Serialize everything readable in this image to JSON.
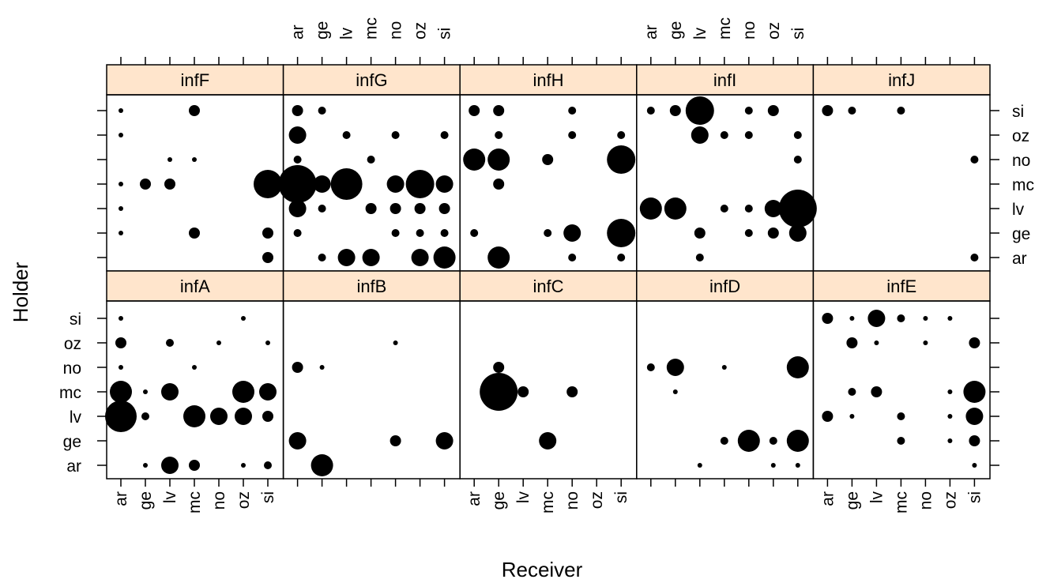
{
  "chart_data": {
    "type": "scatter",
    "x_categories": [
      "ar",
      "ge",
      "lv",
      "mc",
      "no",
      "oz",
      "si"
    ],
    "y_categories": [
      "ar",
      "ge",
      "lv",
      "mc",
      "no",
      "oz",
      "si"
    ],
    "xlabel": "Receiver",
    "ylabel": "Holder",
    "size_levels": [
      1,
      2,
      3,
      4,
      5,
      6
    ],
    "panels": [
      {
        "name": "infF",
        "points": [
          {
            "x": "ar",
            "y": "si",
            "size": 1
          },
          {
            "x": "mc",
            "y": "si",
            "size": 3
          },
          {
            "x": "ar",
            "y": "oz",
            "size": 1
          },
          {
            "x": "lv",
            "y": "no",
            "size": 1
          },
          {
            "x": "mc",
            "y": "no",
            "size": 1
          },
          {
            "x": "ar",
            "y": "mc",
            "size": 1
          },
          {
            "x": "ge",
            "y": "mc",
            "size": 3
          },
          {
            "x": "lv",
            "y": "mc",
            "size": 3
          },
          {
            "x": "si",
            "y": "mc",
            "size": 6
          },
          {
            "x": "ar",
            "y": "lv",
            "size": 1
          },
          {
            "x": "ar",
            "y": "ge",
            "size": 1
          },
          {
            "x": "mc",
            "y": "ge",
            "size": 3
          },
          {
            "x": "si",
            "y": "ge",
            "size": 3
          },
          {
            "x": "si",
            "y": "ar",
            "size": 3
          }
        ]
      },
      {
        "name": "infG",
        "points": [
          {
            "x": "ar",
            "y": "si",
            "size": 3
          },
          {
            "x": "ge",
            "y": "si",
            "size": 2
          },
          {
            "x": "ar",
            "y": "oz",
            "size": 4
          },
          {
            "x": "lv",
            "y": "oz",
            "size": 2
          },
          {
            "x": "no",
            "y": "oz",
            "size": 2
          },
          {
            "x": "si",
            "y": "oz",
            "size": 2
          },
          {
            "x": "ar",
            "y": "no",
            "size": 2
          },
          {
            "x": "mc",
            "y": "no",
            "size": 2
          },
          {
            "x": "ar",
            "y": "mc",
            "size": 8
          },
          {
            "x": "ge",
            "y": "mc",
            "size": 4
          },
          {
            "x": "lv",
            "y": "mc",
            "size": 7
          },
          {
            "x": "no",
            "y": "mc",
            "size": 4
          },
          {
            "x": "oz",
            "y": "mc",
            "size": 6
          },
          {
            "x": "si",
            "y": "mc",
            "size": 4
          },
          {
            "x": "ar",
            "y": "lv",
            "size": 4
          },
          {
            "x": "ge",
            "y": "lv",
            "size": 2
          },
          {
            "x": "mc",
            "y": "lv",
            "size": 3
          },
          {
            "x": "no",
            "y": "lv",
            "size": 3
          },
          {
            "x": "oz",
            "y": "lv",
            "size": 3
          },
          {
            "x": "si",
            "y": "lv",
            "size": 3
          },
          {
            "x": "ar",
            "y": "ge",
            "size": 2
          },
          {
            "x": "no",
            "y": "ge",
            "size": 2
          },
          {
            "x": "oz",
            "y": "ge",
            "size": 2
          },
          {
            "x": "si",
            "y": "ge",
            "size": 2
          },
          {
            "x": "ge",
            "y": "ar",
            "size": 2
          },
          {
            "x": "lv",
            "y": "ar",
            "size": 4
          },
          {
            "x": "mc",
            "y": "ar",
            "size": 4
          },
          {
            "x": "oz",
            "y": "ar",
            "size": 4
          },
          {
            "x": "si",
            "y": "ar",
            "size": 5
          }
        ]
      },
      {
        "name": "infH",
        "points": [
          {
            "x": "ar",
            "y": "si",
            "size": 3
          },
          {
            "x": "ge",
            "y": "si",
            "size": 3
          },
          {
            "x": "no",
            "y": "si",
            "size": 2
          },
          {
            "x": "ge",
            "y": "oz",
            "size": 2
          },
          {
            "x": "no",
            "y": "oz",
            "size": 2
          },
          {
            "x": "si",
            "y": "oz",
            "size": 2
          },
          {
            "x": "ar",
            "y": "no",
            "size": 5
          },
          {
            "x": "ge",
            "y": "no",
            "size": 5
          },
          {
            "x": "mc",
            "y": "no",
            "size": 3
          },
          {
            "x": "si",
            "y": "no",
            "size": 6
          },
          {
            "x": "ge",
            "y": "mc",
            "size": 3
          },
          {
            "x": "ar",
            "y": "ge",
            "size": 2
          },
          {
            "x": "mc",
            "y": "ge",
            "size": 2
          },
          {
            "x": "no",
            "y": "ge",
            "size": 4
          },
          {
            "x": "si",
            "y": "ge",
            "size": 6
          },
          {
            "x": "ge",
            "y": "ar",
            "size": 5
          },
          {
            "x": "no",
            "y": "ar",
            "size": 2
          },
          {
            "x": "si",
            "y": "ar",
            "size": 2
          }
        ]
      },
      {
        "name": "infI",
        "points": [
          {
            "x": "ar",
            "y": "si",
            "size": 2
          },
          {
            "x": "ge",
            "y": "si",
            "size": 3
          },
          {
            "x": "lv",
            "y": "si",
            "size": 6
          },
          {
            "x": "no",
            "y": "si",
            "size": 2
          },
          {
            "x": "oz",
            "y": "si",
            "size": 3
          },
          {
            "x": "lv",
            "y": "oz",
            "size": 4
          },
          {
            "x": "mc",
            "y": "oz",
            "size": 2
          },
          {
            "x": "no",
            "y": "oz",
            "size": 2
          },
          {
            "x": "si",
            "y": "oz",
            "size": 2
          },
          {
            "x": "si",
            "y": "no",
            "size": 2
          },
          {
            "x": "ar",
            "y": "lv",
            "size": 5
          },
          {
            "x": "ge",
            "y": "lv",
            "size": 5
          },
          {
            "x": "mc",
            "y": "lv",
            "size": 2
          },
          {
            "x": "no",
            "y": "lv",
            "size": 2
          },
          {
            "x": "oz",
            "y": "lv",
            "size": 4
          },
          {
            "x": "si",
            "y": "lv",
            "size": 8
          },
          {
            "x": "lv",
            "y": "ge",
            "size": 3
          },
          {
            "x": "no",
            "y": "ge",
            "size": 2
          },
          {
            "x": "oz",
            "y": "ge",
            "size": 3
          },
          {
            "x": "si",
            "y": "ge",
            "size": 4
          },
          {
            "x": "lv",
            "y": "ar",
            "size": 2
          }
        ]
      },
      {
        "name": "infJ",
        "points": [
          {
            "x": "ar",
            "y": "si",
            "size": 3
          },
          {
            "x": "ge",
            "y": "si",
            "size": 2
          },
          {
            "x": "mc",
            "y": "si",
            "size": 2
          },
          {
            "x": "si",
            "y": "no",
            "size": 2
          },
          {
            "x": "si",
            "y": "ar",
            "size": 2
          }
        ]
      },
      {
        "name": "infA",
        "points": [
          {
            "x": "ar",
            "y": "si",
            "size": 1
          },
          {
            "x": "oz",
            "y": "si",
            "size": 1
          },
          {
            "x": "ar",
            "y": "oz",
            "size": 3
          },
          {
            "x": "lv",
            "y": "oz",
            "size": 2
          },
          {
            "x": "no",
            "y": "oz",
            "size": 1
          },
          {
            "x": "si",
            "y": "oz",
            "size": 1
          },
          {
            "x": "ar",
            "y": "no",
            "size": 1
          },
          {
            "x": "mc",
            "y": "no",
            "size": 1
          },
          {
            "x": "ar",
            "y": "mc",
            "size": 5
          },
          {
            "x": "ge",
            "y": "mc",
            "size": 1
          },
          {
            "x": "lv",
            "y": "mc",
            "size": 4
          },
          {
            "x": "oz",
            "y": "mc",
            "size": 5
          },
          {
            "x": "si",
            "y": "mc",
            "size": 4
          },
          {
            "x": "ar",
            "y": "lv",
            "size": 7
          },
          {
            "x": "ge",
            "y": "lv",
            "size": 2
          },
          {
            "x": "mc",
            "y": "lv",
            "size": 5
          },
          {
            "x": "no",
            "y": "lv",
            "size": 4
          },
          {
            "x": "oz",
            "y": "lv",
            "size": 4
          },
          {
            "x": "si",
            "y": "lv",
            "size": 3
          },
          {
            "x": "ge",
            "y": "ar",
            "size": 1
          },
          {
            "x": "lv",
            "y": "ar",
            "size": 4
          },
          {
            "x": "mc",
            "y": "ar",
            "size": 3
          },
          {
            "x": "oz",
            "y": "ar",
            "size": 1
          },
          {
            "x": "si",
            "y": "ar",
            "size": 2
          }
        ]
      },
      {
        "name": "infB",
        "points": [
          {
            "x": "no",
            "y": "oz",
            "size": 1
          },
          {
            "x": "ar",
            "y": "no",
            "size": 3
          },
          {
            "x": "ge",
            "y": "no",
            "size": 1
          },
          {
            "x": "ar",
            "y": "ge",
            "size": 4
          },
          {
            "x": "no",
            "y": "ge",
            "size": 3
          },
          {
            "x": "si",
            "y": "ge",
            "size": 4
          },
          {
            "x": "ge",
            "y": "ar",
            "size": 5
          }
        ]
      },
      {
        "name": "infC",
        "points": [
          {
            "x": "ge",
            "y": "no",
            "size": 3
          },
          {
            "x": "ge",
            "y": "mc",
            "size": 8
          },
          {
            "x": "lv",
            "y": "mc",
            "size": 3
          },
          {
            "x": "no",
            "y": "mc",
            "size": 3
          },
          {
            "x": "mc",
            "y": "ge",
            "size": 4
          }
        ]
      },
      {
        "name": "infD",
        "points": [
          {
            "x": "ar",
            "y": "no",
            "size": 2
          },
          {
            "x": "ge",
            "y": "no",
            "size": 4
          },
          {
            "x": "mc",
            "y": "no",
            "size": 1
          },
          {
            "x": "si",
            "y": "no",
            "size": 5
          },
          {
            "x": "ge",
            "y": "mc",
            "size": 1
          },
          {
            "x": "mc",
            "y": "ge",
            "size": 2
          },
          {
            "x": "no",
            "y": "ge",
            "size": 5
          },
          {
            "x": "oz",
            "y": "ge",
            "size": 2
          },
          {
            "x": "si",
            "y": "ge",
            "size": 5
          },
          {
            "x": "lv",
            "y": "ar",
            "size": 1
          },
          {
            "x": "oz",
            "y": "ar",
            "size": 1
          },
          {
            "x": "si",
            "y": "ar",
            "size": 1
          }
        ]
      },
      {
        "name": "infE",
        "points": [
          {
            "x": "ar",
            "y": "si",
            "size": 3
          },
          {
            "x": "ge",
            "y": "si",
            "size": 1
          },
          {
            "x": "lv",
            "y": "si",
            "size": 4
          },
          {
            "x": "mc",
            "y": "si",
            "size": 2
          },
          {
            "x": "no",
            "y": "si",
            "size": 1
          },
          {
            "x": "oz",
            "y": "si",
            "size": 1
          },
          {
            "x": "ge",
            "y": "oz",
            "size": 3
          },
          {
            "x": "lv",
            "y": "oz",
            "size": 1
          },
          {
            "x": "no",
            "y": "oz",
            "size": 1
          },
          {
            "x": "si",
            "y": "oz",
            "size": 3
          },
          {
            "x": "ge",
            "y": "mc",
            "size": 2
          },
          {
            "x": "lv",
            "y": "mc",
            "size": 3
          },
          {
            "x": "oz",
            "y": "mc",
            "size": 1
          },
          {
            "x": "si",
            "y": "mc",
            "size": 5
          },
          {
            "x": "ar",
            "y": "lv",
            "size": 3
          },
          {
            "x": "ge",
            "y": "lv",
            "size": 1
          },
          {
            "x": "mc",
            "y": "lv",
            "size": 2
          },
          {
            "x": "oz",
            "y": "lv",
            "size": 1
          },
          {
            "x": "si",
            "y": "lv",
            "size": 4
          },
          {
            "x": "mc",
            "y": "ge",
            "size": 2
          },
          {
            "x": "oz",
            "y": "ge",
            "size": 1
          },
          {
            "x": "si",
            "y": "ge",
            "size": 3
          },
          {
            "x": "si",
            "y": "ar",
            "size": 1
          }
        ]
      }
    ],
    "grid": false,
    "point_color": "#000000",
    "strip_color": "#ffe5cc"
  }
}
